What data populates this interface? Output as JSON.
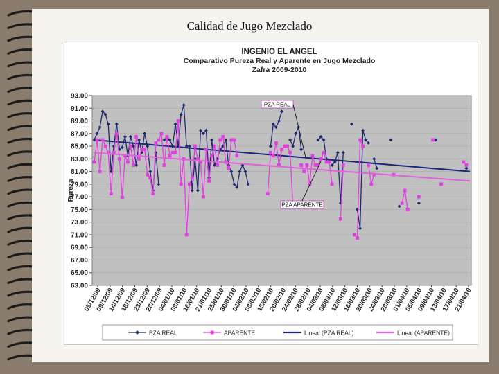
{
  "slide": {
    "title": "Calidad de Jugo Mezclado"
  },
  "chart_data": {
    "type": "line",
    "title_lines": [
      "INGENIO EL ANGEL",
      "Comparativo Pureza Real y Aparente en Jugo Mezclado",
      "Zafra 2009-2010"
    ],
    "ylabel": "Pureza",
    "ylim": [
      63,
      93
    ],
    "yticks": [
      "63.00",
      "65.00",
      "67.00",
      "69.00",
      "71.00",
      "73.00",
      "75.00",
      "77.00",
      "79.00",
      "81.00",
      "83.00",
      "85.00",
      "87.00",
      "89.00",
      "91.00",
      "93.00"
    ],
    "x_tick_labels": [
      "05/12/09",
      "09/12/09",
      "14/12/09",
      "18/12/09",
      "23/12/09",
      "28/12/09",
      "04/01/10",
      "08/01/10",
      "16/01/10",
      "21/01/10",
      "25/01/10",
      "30/01/10",
      "04/02/10",
      "08/02/10",
      "15/02/10",
      "20/02/10",
      "24/02/10",
      "28/02/10",
      "04/03/10",
      "08/03/10",
      "12/03/10",
      "16/03/10",
      "20/03/10",
      "24/03/10",
      "28/03/10",
      "01/04/10",
      "05/04/10",
      "09/04/10",
      "13/04/10",
      "17/04/10",
      "21/04/10"
    ],
    "n_points": 135,
    "series": [
      {
        "name": "PZA REAL",
        "color": "#1f2a6e",
        "values": [
          86.0,
          87.0,
          88.0,
          90.5,
          90.0,
          88.5,
          81.0,
          85.0,
          88.5,
          84.5,
          84.8,
          86.5,
          83.5,
          86.5,
          85.0,
          82.0,
          86.0,
          84.0,
          87.0,
          85.0,
          81.0,
          78.0,
          84.0,
          79.0,
          null,
          86.0,
          86.5,
          86.0,
          85.0,
          88.5,
          85.0,
          90.0,
          91.5,
          85.0,
          85.0,
          78.0,
          83.0,
          78.0,
          87.5,
          87.0,
          87.5,
          80.0,
          86.0,
          82.0,
          83.0,
          84.5,
          85.0,
          86.0,
          82.0,
          81.0,
          79.0,
          78.5,
          81.0,
          82.0,
          81.0,
          79.0,
          null,
          null,
          null,
          null,
          null,
          null,
          null,
          85.0,
          88.5,
          88.0,
          89.0,
          90.5,
          null,
          null,
          86.0,
          85.0,
          87.0,
          88.0,
          84.5,
          null,
          null,
          null,
          null,
          null,
          86.0,
          86.5,
          86.0,
          83.0,
          null,
          82.0,
          82.5,
          84.0,
          76.0,
          84.0,
          null,
          null,
          88.5,
          null,
          75.0,
          72.0,
          87.5,
          86.0,
          85.5,
          null,
          83.0,
          81.5,
          null,
          null,
          null,
          null,
          86.0,
          null,
          null,
          75.5,
          null,
          null,
          null,
          null,
          null,
          null,
          76.0,
          null,
          null,
          null,
          null,
          null,
          86.0,
          null,
          null,
          null,
          null,
          null,
          null,
          null,
          null,
          null,
          null,
          81.5,
          null
        ],
        "trend": [
          86.0,
          81.0
        ]
      },
      {
        "name": "APARENTE",
        "color": "#e040e0",
        "values": [
          82.5,
          86.0,
          81.0,
          86.0,
          85.0,
          84.0,
          77.5,
          84.0,
          87.0,
          83.0,
          76.9,
          83.5,
          82.5,
          85.0,
          82.0,
          86.5,
          83.0,
          84.5,
          84.5,
          80.5,
          80.0,
          77.5,
          85.5,
          86.0,
          87.0,
          82.0,
          86.5,
          83.5,
          84.0,
          84.0,
          89.0,
          79.0,
          83.0,
          71.0,
          79.0,
          80.0,
          85.0,
          83.0,
          82.5,
          77.0,
          84.5,
          79.5,
          83.5,
          85.0,
          82.0,
          86.0,
          86.5,
          82.5,
          81.5,
          86.0,
          86.0,
          83.5,
          null,
          null,
          null,
          null,
          null,
          null,
          null,
          null,
          null,
          null,
          77.5,
          84.0,
          83.5,
          85.5,
          82.0,
          84.5,
          85.0,
          85.0,
          84.0,
          75.5,
          null,
          null,
          82.0,
          81.0,
          82.0,
          79.0,
          83.5,
          82.0,
          82.0,
          83.0,
          84.0,
          82.5,
          82.5,
          79.0,
          null,
          null,
          73.5,
          82.0,
          null,
          null,
          null,
          71.0,
          70.5,
          86.0,
          85.0,
          null,
          82.0,
          79.0,
          80.5,
          null,
          null,
          null,
          null,
          null,
          null,
          80.5,
          null,
          null,
          76.0,
          78.0,
          75.0,
          null,
          null,
          null,
          77.0,
          null,
          null,
          null,
          null,
          86.0,
          null,
          null,
          79.0,
          null,
          null,
          null,
          null,
          null,
          null,
          null,
          82.5,
          82.0,
          null,
          null,
          null
        ],
        "trend": [
          84.0,
          79.5
        ]
      }
    ],
    "annotations": [
      "PZA REAL",
      "PZA APARENTE"
    ],
    "legend": [
      "PZA REAL",
      "APARENTE",
      "Lineal (PZA REAL)",
      "Lineal (APARENTE)"
    ]
  },
  "colors": {
    "plot_bg": "#c0c0c0",
    "real": "#1f2a6e",
    "aparente": "#e040e0",
    "trend_real": "#1a237e",
    "trend_ap": "#e060e0"
  }
}
